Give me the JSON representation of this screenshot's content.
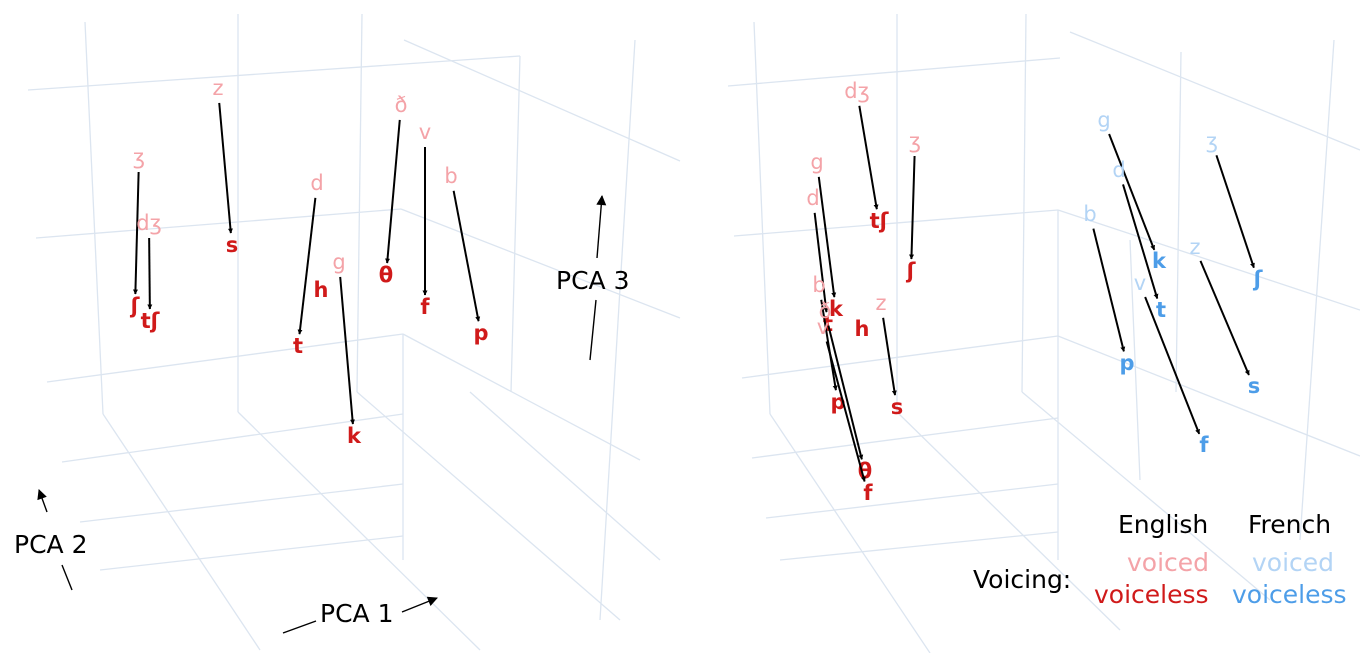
{
  "colors": {
    "english_voiced": "#f4a3a8",
    "english_voiceless": "#d01a1a",
    "french_voiced": "#b3d4f5",
    "french_voiceless": "#4d9de8",
    "arrow": "#000000",
    "grid": "#dce5f0"
  },
  "chart_data": [
    {
      "type": "scatter",
      "title": "",
      "axes": {
        "x_label": "PCA 1",
        "y_label": "PCA 2",
        "z_label": "PCA 3"
      },
      "pairs": [
        {
          "voiced": "z",
          "voiceless": "s",
          "lang": "English"
        },
        {
          "voiced": "ʒ",
          "voiceless": "ʃ",
          "lang": "English"
        },
        {
          "voiced": "dʒ",
          "voiceless": "tʃ",
          "lang": "English"
        },
        {
          "voiced": "d",
          "voiceless": "t",
          "lang": "English"
        },
        {
          "voiced": "g",
          "voiceless": "k",
          "lang": "English"
        },
        {
          "voiced": "ð",
          "voiceless": "θ",
          "lang": "English"
        },
        {
          "voiced": "v",
          "voiceless": "f",
          "lang": "English"
        },
        {
          "voiced": "b",
          "voiceless": "p",
          "lang": "English"
        }
      ],
      "unpaired": [
        {
          "label": "h",
          "lang": "English",
          "voicing": "voiceless"
        }
      ]
    },
    {
      "type": "scatter",
      "title": "",
      "axes": {
        "x_label": "",
        "y_label": "",
        "z_label": ""
      },
      "pairs": [
        {
          "voiced": "dʒ",
          "voiceless": "tʃ",
          "lang": "English"
        },
        {
          "voiced": "ʒ",
          "voiceless": "ʃ",
          "lang": "English"
        },
        {
          "voiced": "g",
          "voiceless": "k",
          "lang": "English"
        },
        {
          "voiced": "d",
          "voiceless": "t",
          "lang": "English"
        },
        {
          "voiced": "b",
          "voiceless": "p",
          "lang": "English"
        },
        {
          "voiced": "ð",
          "voiceless": "θ",
          "lang": "English"
        },
        {
          "voiced": "v",
          "voiceless": "f",
          "lang": "English"
        },
        {
          "voiced": "z",
          "voiceless": "s",
          "lang": "English"
        },
        {
          "voiced": "g",
          "voiceless": "k",
          "lang": "French"
        },
        {
          "voiced": "d",
          "voiceless": "t",
          "lang": "French"
        },
        {
          "voiced": "b",
          "voiceless": "p",
          "lang": "French"
        },
        {
          "voiced": "v",
          "voiceless": "f",
          "lang": "French"
        },
        {
          "voiced": "ʒ",
          "voiceless": "ʃ",
          "lang": "French"
        },
        {
          "voiced": "z",
          "voiceless": "s",
          "lang": "French"
        }
      ],
      "unpaired": [
        {
          "label": "h",
          "lang": "English",
          "voicing": "voiceless"
        }
      ]
    }
  ],
  "legend": {
    "title": "Voicing:",
    "columns": [
      "English",
      "French"
    ],
    "rows": [
      "voiced",
      "voiceless"
    ]
  }
}
